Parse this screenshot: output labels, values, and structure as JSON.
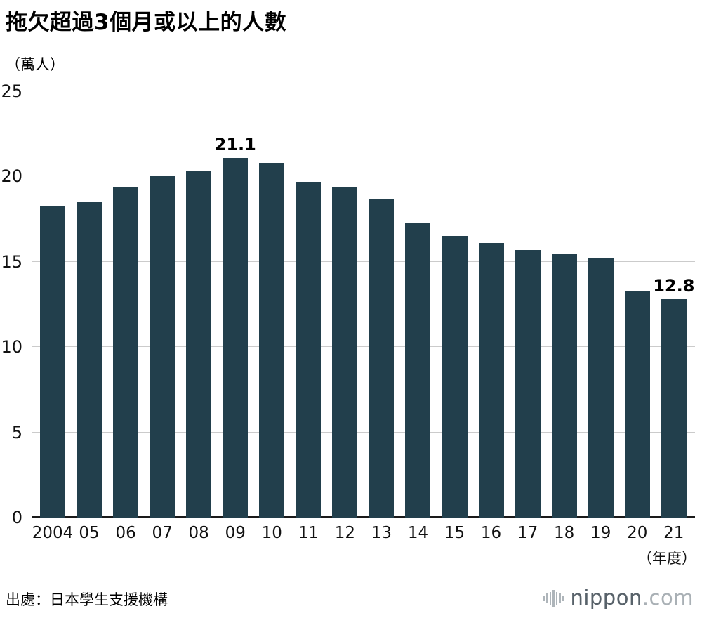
{
  "title": "拖欠超過3個月或以上的人數",
  "unit_label": "（萬人）",
  "x_axis_suffix": "（年度）",
  "source": "出處：日本學生支援機構",
  "logo": {
    "name": "nippon",
    "tld": ".com"
  },
  "colors": {
    "bar": "#223f4c",
    "grid": "#cbcbcb",
    "axis": "#1a1a1a"
  },
  "chart_data": {
    "type": "bar",
    "title": "拖欠超過3個月或以上的人數",
    "ylabel": "（萬人）",
    "xlabel": "（年度）",
    "categories": [
      "2004",
      "05",
      "06",
      "07",
      "08",
      "09",
      "10",
      "11",
      "12",
      "13",
      "14",
      "15",
      "16",
      "17",
      "18",
      "19",
      "20",
      "21"
    ],
    "values": [
      18.3,
      18.5,
      19.4,
      20.0,
      20.3,
      21.1,
      20.8,
      19.7,
      19.4,
      18.7,
      17.3,
      16.5,
      16.1,
      15.7,
      15.5,
      15.2,
      13.3,
      12.8
    ],
    "ylim": [
      0,
      25
    ],
    "yticks": [
      0,
      5,
      10,
      15,
      20,
      25
    ],
    "grid": true,
    "legend": false,
    "annotations": [
      {
        "index": 5,
        "text": "21.1"
      },
      {
        "index": 17,
        "text": "12.8"
      }
    ]
  }
}
